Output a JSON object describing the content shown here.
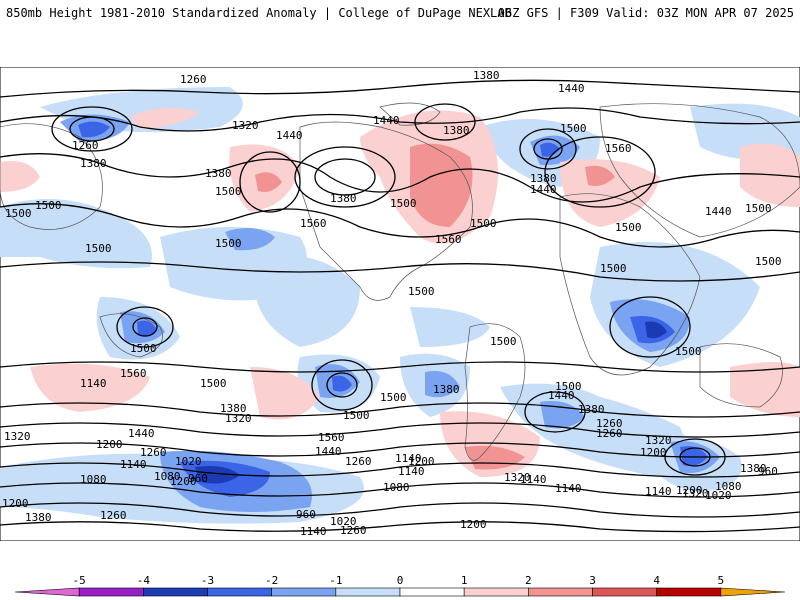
{
  "header": {
    "left": "850mb Height 1981-2010 Standardized Anomaly | College of DuPage NEXLAB",
    "right": "06Z GFS | F309 Valid: 03Z MON APR 07 2025"
  },
  "colorbar": {
    "ticks": [
      "-5",
      "-4",
      "-3",
      "-2",
      "-1",
      "0",
      "1",
      "2",
      "3",
      "4",
      "5"
    ],
    "colors": [
      "#e066d6",
      "#9b1fc9",
      "#1b3bb5",
      "#3b64e6",
      "#7aa3f2",
      "#c6def7",
      "#ffffff",
      "#fbd0d0",
      "#f29393",
      "#e05555",
      "#b80000",
      "#f0a000"
    ]
  },
  "contour_labels": [
    "1260",
    "1260",
    "1320",
    "1380",
    "1440",
    "1500",
    "1380",
    "1500",
    "1380",
    "1500",
    "1560",
    "1380",
    "1440",
    "1500",
    "1380",
    "1440",
    "1500",
    "1560",
    "1560",
    "1500",
    "1440",
    "1500",
    "1380",
    "1440",
    "1500",
    "1500",
    "1500",
    "1500",
    "1500",
    "1500",
    "1500",
    "1560",
    "1500",
    "1500",
    "1500",
    "1500",
    "1500",
    "1380",
    "1500",
    "1440",
    "1380",
    "1320",
    "1260",
    "1320",
    "1200",
    "1140",
    "1080",
    "1320",
    "1380",
    "1440",
    "1260",
    "1560",
    "1440",
    "1260",
    "1200",
    "1140",
    "1080",
    "1020",
    "960",
    "960",
    "1020",
    "1140",
    "1200",
    "1260",
    "1140",
    "1200",
    "1260",
    "1320",
    "1200",
    "1140",
    "1080",
    "1020",
    "960",
    "1140",
    "1200",
    "1320",
    "1080",
    "1140",
    "1260",
    "1380",
    "1200",
    "1140",
    "1380",
    "1140"
  ]
}
